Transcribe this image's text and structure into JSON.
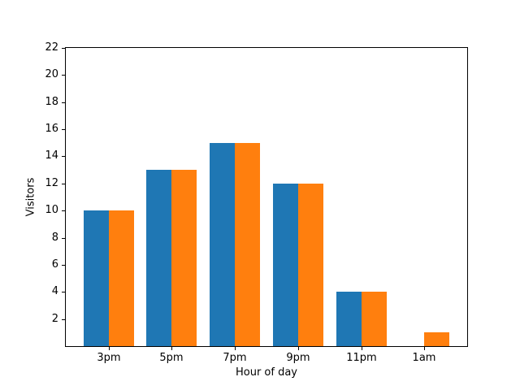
{
  "figure": {
    "background": "#ffffff",
    "spine_color": "#000000"
  },
  "chart_data": {
    "type": "bar",
    "categories": [
      "3pm",
      "5pm",
      "7pm",
      "9pm",
      "11pm",
      "1am"
    ],
    "series": [
      {
        "name": "blue",
        "color": "#1f77b4",
        "values": [
          10,
          13,
          15,
          12,
          4,
          0
        ]
      },
      {
        "name": "orange",
        "color": "#ff7f0e",
        "values": [
          10,
          13,
          15,
          12,
          4,
          1
        ]
      }
    ],
    "xlabel": "Hour of day",
    "ylabel": "Visitors",
    "ylim": [
      0,
      22
    ],
    "yticks": [
      2,
      4,
      6,
      8,
      10,
      12,
      14,
      16,
      18,
      20,
      22
    ],
    "bar_width": 0.4,
    "grid": false,
    "legend": "none"
  }
}
